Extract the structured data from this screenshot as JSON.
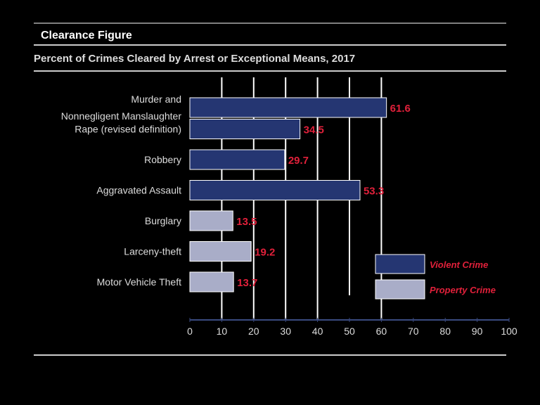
{
  "header": {
    "title": "Clearance Figure"
  },
  "chart_data": {
    "type": "bar",
    "orientation": "horizontal",
    "title": "Percent of Crimes Cleared by Arrest or Exceptional Means, 2017",
    "categories": [
      "Murder and Nonnegligent Manslaughter",
      "Rape (revised definition)",
      "Robbery",
      "Aggravated Assault",
      "Burglary",
      "Larceny-theft",
      "Motor Vehicle Theft"
    ],
    "category_lines": [
      [
        "Murder and",
        "Nonnegligent Manslaughter"
      ],
      [
        "Rape (revised definition)"
      ],
      [
        "Robbery"
      ],
      [
        "Aggravated Assault"
      ],
      [
        "Burglary"
      ],
      [
        "Larceny-theft"
      ],
      [
        "Motor Vehicle Theft"
      ]
    ],
    "values": [
      61.6,
      34.5,
      29.7,
      53.3,
      13.5,
      19.2,
      13.7
    ],
    "groups": [
      "violent",
      "violent",
      "violent",
      "violent",
      "property",
      "property",
      "property"
    ],
    "legend": [
      {
        "key": "violent",
        "label": "Violent Crime",
        "color": "#253672"
      },
      {
        "key": "property",
        "label": "Property Crime",
        "color": "#a9adc8"
      }
    ],
    "legend_position": "bottom-right",
    "xlim": [
      0,
      100
    ],
    "xticks": [
      0,
      10,
      20,
      30,
      40,
      50,
      60,
      70,
      80,
      90,
      100
    ],
    "grid": true,
    "label_color": "#e0203a"
  }
}
